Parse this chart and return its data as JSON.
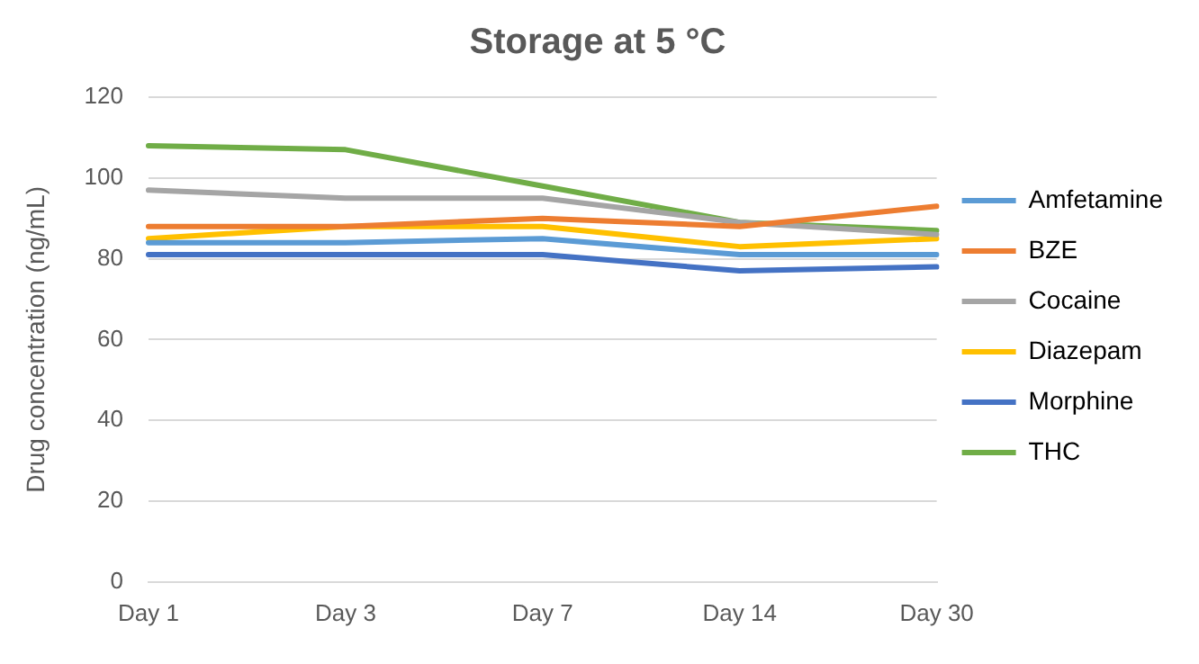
{
  "chart_data": {
    "type": "line",
    "title": "Storage at 5 °C",
    "ylabel": "Drug concentration (ng/mL)",
    "categories": [
      "Day 1",
      "Day 3",
      "Day 7",
      "Day 14",
      "Day 30"
    ],
    "series": [
      {
        "name": "Amfetamine",
        "color": "#5b9bd5",
        "values": [
          84,
          84,
          85,
          81,
          81
        ]
      },
      {
        "name": "BZE",
        "color": "#ed7d31",
        "values": [
          88,
          88,
          90,
          88,
          93
        ]
      },
      {
        "name": "Cocaine",
        "color": "#a5a5a5",
        "values": [
          97,
          95,
          95,
          89,
          86
        ]
      },
      {
        "name": "Diazepam",
        "color": "#ffc000",
        "values": [
          85,
          88,
          88,
          83,
          85
        ]
      },
      {
        "name": "Morphine",
        "color": "#4472c4",
        "values": [
          81,
          81,
          81,
          77,
          78
        ]
      },
      {
        "name": "THC",
        "color": "#70ad47",
        "values": [
          108,
          107,
          98,
          89,
          87
        ]
      }
    ],
    "ylim": [
      0,
      120
    ],
    "yticks": [
      0,
      20,
      40,
      60,
      80,
      100,
      120
    ],
    "grid": "y",
    "legend": "right",
    "marker": "none",
    "line_style": "solid"
  }
}
